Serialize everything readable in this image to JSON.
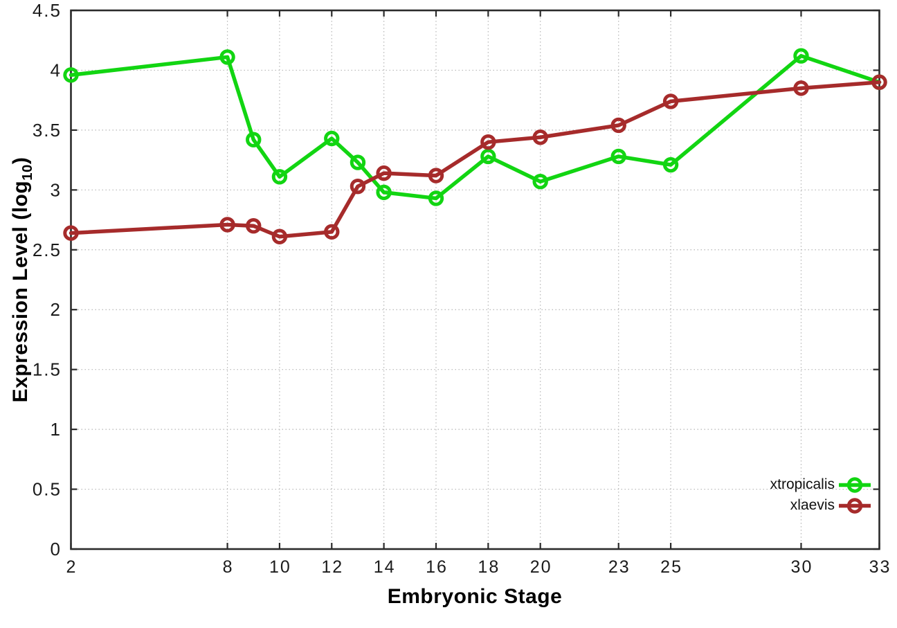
{
  "figure": {
    "background": "#ffffff"
  },
  "chart_data": {
    "type": "line",
    "title": "",
    "xlabel": "Embryonic Stage",
    "ylabel": {
      "pre": "Expression Level (log",
      "sub": "10",
      "post": ")"
    },
    "xlim": [
      2,
      33
    ],
    "ylim": [
      0,
      4.5
    ],
    "grid": true,
    "grid_style": "dotted",
    "legend_position": "inside-bottom-right",
    "marker": "open-circle",
    "xticks": {
      "values": [
        2,
        8,
        10,
        12,
        14,
        16,
        18,
        20,
        23,
        25,
        30,
        33
      ],
      "labels": [
        "2",
        "8",
        "10",
        "12",
        "14",
        "16",
        "18",
        "20",
        "23",
        "25",
        "30",
        "33"
      ]
    },
    "yticks": {
      "values": [
        0,
        0.5,
        1,
        1.5,
        2,
        2.5,
        3,
        3.5,
        4,
        4.5
      ],
      "labels": [
        "0",
        "0.5",
        "1",
        "1.5",
        "2",
        "2.5",
        "3",
        "3.5",
        "4",
        "4.5"
      ]
    },
    "x": [
      2,
      8,
      9,
      10,
      12,
      13,
      14,
      16,
      18,
      20,
      23,
      25,
      30,
      33
    ],
    "series": [
      {
        "name": "xtropicalis",
        "color": "#12d512",
        "values": [
          3.96,
          4.11,
          3.42,
          3.11,
          3.43,
          3.23,
          2.98,
          2.93,
          3.28,
          3.07,
          3.28,
          3.21,
          4.12,
          3.9
        ]
      },
      {
        "name": "xlaevis",
        "color": "#a62b2b",
        "values": [
          2.64,
          2.71,
          2.7,
          2.61,
          2.65,
          3.03,
          3.14,
          3.12,
          3.4,
          3.44,
          3.54,
          3.74,
          3.85,
          3.9
        ]
      }
    ]
  },
  "style": {
    "grid_color": "#b5b5b5",
    "border_color": "#2b2b2b",
    "tick_label_color": "#1b1b1b"
  }
}
